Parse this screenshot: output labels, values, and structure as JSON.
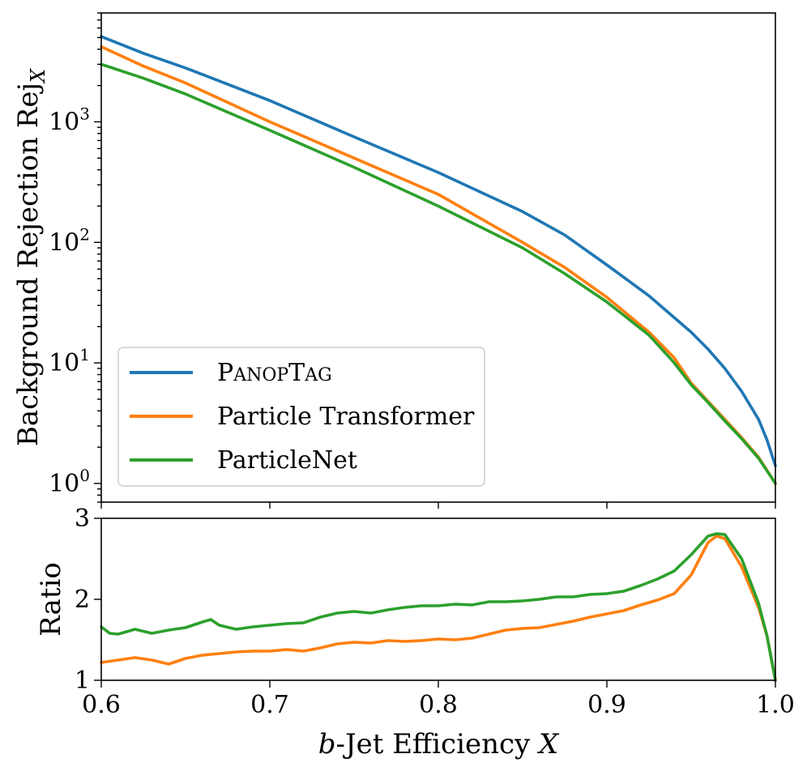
{
  "chart_data": [
    {
      "type": "line",
      "ylabel": "Background Rejection Rej",
      "ylabel_sub": "X",
      "yscale": "log",
      "ylim": [
        0.7,
        8000
      ],
      "xlim": [
        0.6,
        1.0
      ],
      "ytick_values": [
        1,
        10,
        100,
        1000
      ],
      "ytick_labels": [
        {
          "base": "10",
          "exp": "0"
        },
        {
          "base": "10",
          "exp": "1"
        },
        {
          "base": "10",
          "exp": "2"
        },
        {
          "base": "10",
          "exp": "3"
        }
      ],
      "legend_position": "lower-left",
      "grid": false,
      "series": [
        {
          "name": "PanopTag",
          "color": "#1f77b4",
          "x": [
            0.6,
            0.625,
            0.65,
            0.7,
            0.75,
            0.8,
            0.85,
            0.875,
            0.9,
            0.925,
            0.95,
            0.96,
            0.97,
            0.98,
            0.99,
            0.995,
            1.0
          ],
          "y": [
            5100,
            3700,
            2800,
            1500,
            750,
            380,
            180,
            115,
            65,
            36,
            18,
            13,
            9.0,
            5.8,
            3.4,
            2.3,
            1.4
          ]
        },
        {
          "name": "Particle Transformer",
          "color": "#ff7f0e",
          "x": [
            0.6,
            0.625,
            0.65,
            0.7,
            0.75,
            0.8,
            0.85,
            0.875,
            0.9,
            0.925,
            0.94,
            0.95,
            0.96,
            0.97,
            0.98,
            0.99,
            1.0
          ],
          "y": [
            4200,
            2900,
            2100,
            1000,
            500,
            250,
            100,
            62,
            35,
            18,
            11,
            6.8,
            4.8,
            3.4,
            2.4,
            1.65,
            1.0
          ]
        },
        {
          "name": "ParticleNet",
          "color": "#2ca02c",
          "x": [
            0.6,
            0.625,
            0.65,
            0.7,
            0.75,
            0.8,
            0.85,
            0.875,
            0.9,
            0.925,
            0.94,
            0.95,
            0.96,
            0.97,
            0.98,
            0.99,
            1.0
          ],
          "y": [
            3000,
            2300,
            1700,
            850,
            420,
            200,
            90,
            55,
            32,
            17,
            10,
            6.6,
            4.7,
            3.3,
            2.35,
            1.62,
            1.0
          ]
        }
      ]
    },
    {
      "type": "line",
      "xlabel_italic_prefix": "b",
      "xlabel": "-Jet Efficiency ",
      "xlabel_italic_suffix": "X",
      "ylabel": "Ratio",
      "xlim": [
        0.6,
        1.0
      ],
      "ylim": [
        1,
        3
      ],
      "xtick_labels": [
        "0.6",
        "0.7",
        "0.8",
        "0.9",
        "1.0"
      ],
      "ytick_labels": [
        "1",
        "2",
        "3"
      ],
      "grid": false,
      "series": [
        {
          "name": "Particle Transformer",
          "color": "#ff7f0e",
          "x": [
            0.6,
            0.61,
            0.62,
            0.63,
            0.64,
            0.65,
            0.66,
            0.67,
            0.68,
            0.69,
            0.7,
            0.71,
            0.72,
            0.73,
            0.74,
            0.75,
            0.76,
            0.77,
            0.78,
            0.79,
            0.8,
            0.81,
            0.82,
            0.83,
            0.84,
            0.85,
            0.86,
            0.87,
            0.88,
            0.89,
            0.9,
            0.91,
            0.92,
            0.93,
            0.94,
            0.95,
            0.96,
            0.965,
            0.97,
            0.98,
            0.99,
            0.995,
            1.0
          ],
          "y": [
            1.22,
            1.25,
            1.28,
            1.25,
            1.2,
            1.27,
            1.31,
            1.33,
            1.35,
            1.36,
            1.36,
            1.38,
            1.36,
            1.4,
            1.45,
            1.47,
            1.46,
            1.49,
            1.48,
            1.49,
            1.51,
            1.5,
            1.52,
            1.57,
            1.62,
            1.64,
            1.65,
            1.69,
            1.73,
            1.78,
            1.82,
            1.86,
            1.93,
            1.99,
            2.07,
            2.3,
            2.7,
            2.78,
            2.75,
            2.4,
            1.9,
            1.55,
            1.0
          ]
        },
        {
          "name": "ParticleNet",
          "color": "#2ca02c",
          "x": [
            0.6,
            0.605,
            0.61,
            0.62,
            0.63,
            0.64,
            0.65,
            0.66,
            0.665,
            0.67,
            0.68,
            0.69,
            0.7,
            0.71,
            0.72,
            0.73,
            0.74,
            0.75,
            0.76,
            0.77,
            0.78,
            0.79,
            0.8,
            0.81,
            0.82,
            0.83,
            0.84,
            0.85,
            0.86,
            0.87,
            0.88,
            0.89,
            0.9,
            0.91,
            0.92,
            0.93,
            0.94,
            0.95,
            0.96,
            0.965,
            0.97,
            0.98,
            0.99,
            0.995,
            1.0
          ],
          "y": [
            1.66,
            1.58,
            1.57,
            1.63,
            1.58,
            1.62,
            1.65,
            1.72,
            1.75,
            1.68,
            1.63,
            1.66,
            1.68,
            1.7,
            1.71,
            1.78,
            1.83,
            1.85,
            1.83,
            1.87,
            1.9,
            1.92,
            1.92,
            1.94,
            1.93,
            1.97,
            1.97,
            1.98,
            2.0,
            2.03,
            2.03,
            2.06,
            2.07,
            2.1,
            2.17,
            2.25,
            2.35,
            2.55,
            2.78,
            2.81,
            2.8,
            2.5,
            1.95,
            1.55,
            1.0
          ]
        }
      ]
    }
  ]
}
